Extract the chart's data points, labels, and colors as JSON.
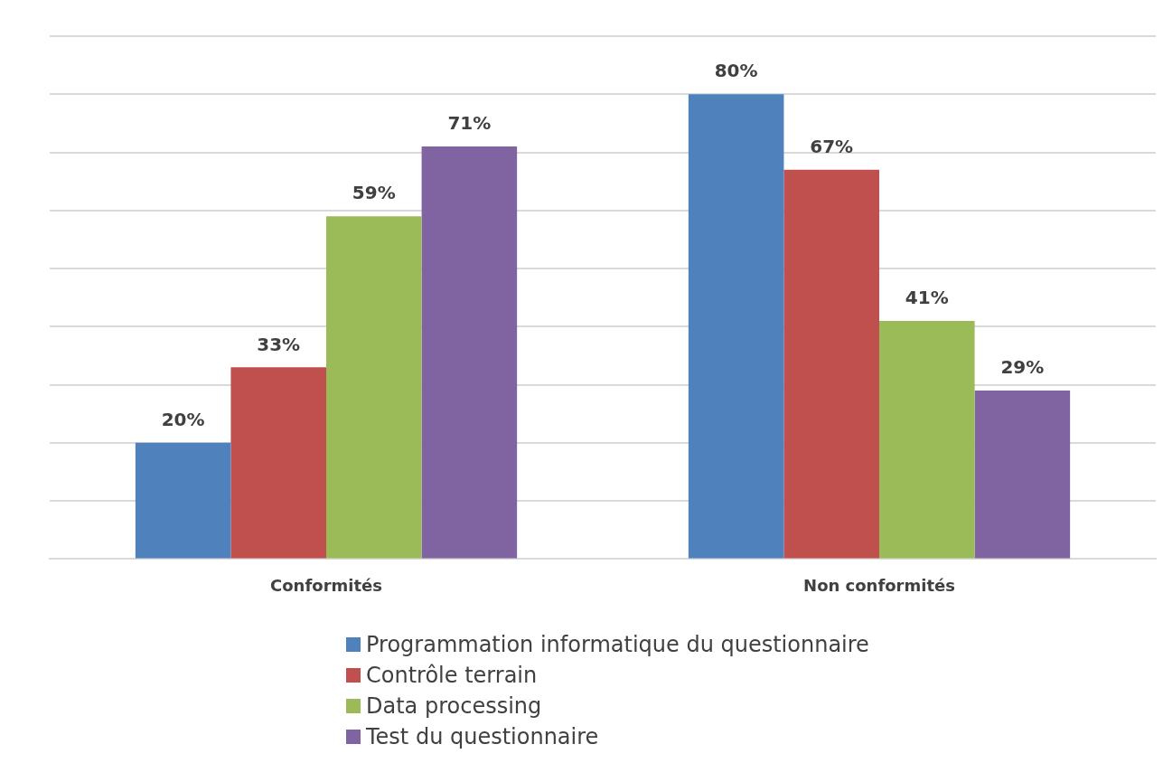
{
  "chart_data": {
    "type": "bar",
    "categories": [
      "Conformités",
      "Non conformités"
    ],
    "series": [
      {
        "name": "Programmation informatique du questionnaire",
        "color": "#4f81bd",
        "values": [
          20,
          80
        ],
        "value_labels": [
          "20%",
          "80%"
        ]
      },
      {
        "name": "Contrôle terrain",
        "color": "#c0504d",
        "values": [
          33,
          67
        ],
        "value_labels": [
          "33%",
          "67%"
        ]
      },
      {
        "name": "Data processing",
        "color": "#9bbb59",
        "values": [
          59,
          41
        ],
        "value_labels": [
          "59%",
          "41%"
        ]
      },
      {
        "name": "Test du questionnaire",
        "color": "#8064a2",
        "values": [
          71,
          29
        ],
        "value_labels": [
          "71%",
          "29%"
        ]
      }
    ],
    "ylim": [
      0,
      90
    ],
    "yticks": [
      {
        "value": 0,
        "label": null
      },
      {
        "value": 10,
        "label": null
      },
      {
        "value": 20,
        "label": null
      },
      {
        "value": 30,
        "label": null
      },
      {
        "value": 40,
        "label": null
      },
      {
        "value": 50,
        "label": null
      },
      {
        "value": 60,
        "label": null
      },
      {
        "value": 70,
        "label": null
      },
      {
        "value": 80,
        "label": null
      },
      {
        "value": 90,
        "label": null
      }
    ],
    "tick_labels": "x",
    "grid": "y",
    "legend": "bottom"
  }
}
